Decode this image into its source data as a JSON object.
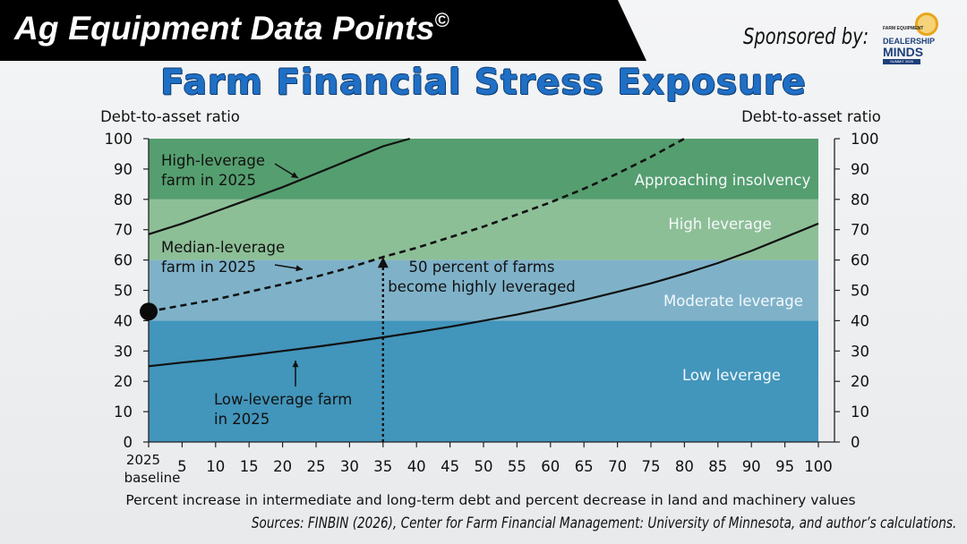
{
  "header": {
    "title": "Ag Equipment Data Points",
    "copyright_mark": "©"
  },
  "sponsor": {
    "label": "Sponsored by:",
    "logo": {
      "icon": "lightbulb-icon",
      "small_text": "FARM EQUIPMENT",
      "line1": "DEALERSHIP",
      "line2": "MINDS",
      "band": "SUMMIT 2026"
    }
  },
  "chart_title": "Farm Financial Stress Exposure",
  "sources": "Sources: FINBIN (2026), Center for Farm Financial Management: University of Minnesota, and author’s calculations.",
  "colors": {
    "title_blue": "#1f6fc5",
    "zone_low": "#4295bb",
    "zone_moderate": "#7fb2c9",
    "zone_high": "#8dbf97",
    "zone_insolvency": "#559e6f"
  },
  "chart_data": {
    "type": "line",
    "xlabel": "Percent increase in intermediate and long-term debt and percent decrease in land and machinery values",
    "ylabel_left": "Debt-to-asset ratio",
    "ylabel_right": "Debt-to-asset ratio",
    "xlim": [
      0,
      100
    ],
    "ylim": [
      0,
      100
    ],
    "x_ticks": [
      5,
      10,
      15,
      20,
      25,
      30,
      35,
      40,
      45,
      50,
      55,
      60,
      65,
      70,
      75,
      80,
      85,
      90,
      95,
      100
    ],
    "x_first_tick_label": [
      "2025",
      "baseline"
    ],
    "y_ticks": [
      0,
      10,
      20,
      30,
      40,
      50,
      60,
      70,
      80,
      90,
      100
    ],
    "zones": [
      {
        "name": "Low leverage",
        "from": 0,
        "to": 40
      },
      {
        "name": "Moderate leverage",
        "from": 40,
        "to": 60
      },
      {
        "name": "High leverage",
        "from": 60,
        "to": 80
      },
      {
        "name": "Approaching insolvency",
        "from": 80,
        "to": 100
      }
    ],
    "series": [
      {
        "name": "High-leverage farm in 2025",
        "style": "solid",
        "x": [
          0,
          5,
          10,
          15,
          20,
          25,
          30,
          35,
          39
        ],
        "y": [
          68.5,
          72,
          76,
          80,
          84,
          88.5,
          93,
          97.5,
          100
        ]
      },
      {
        "name": "Median-leverage farm in 2025",
        "style": "dashed",
        "x": [
          0,
          5,
          10,
          15,
          20,
          25,
          30,
          35,
          40,
          45,
          50,
          55,
          60,
          65,
          70,
          75,
          80
        ],
        "y": [
          43,
          45,
          47,
          49.5,
          52,
          54.5,
          57.5,
          61,
          64,
          67.5,
          71,
          75,
          79,
          83.5,
          88.5,
          94,
          100
        ]
      },
      {
        "name": "Low-leverage farm in 2025",
        "style": "solid",
        "x": [
          0,
          5,
          10,
          15,
          20,
          25,
          30,
          35,
          40,
          45,
          50,
          55,
          60,
          65,
          70,
          75,
          80,
          85,
          90,
          95,
          100
        ],
        "y": [
          25,
          26.2,
          27.3,
          28.6,
          30,
          31.4,
          32.9,
          34.5,
          36.2,
          38,
          40,
          42,
          44.3,
          46.8,
          49.5,
          52.3,
          55.5,
          59,
          63,
          67.5,
          72
        ]
      }
    ],
    "baseline_marker": {
      "x": 0,
      "y": 43
    },
    "vertical_marker": {
      "x": 35,
      "y_from": 0,
      "y_to": 61
    },
    "annotations": [
      {
        "lines": [
          "High-leverage",
          "farm in 2025"
        ]
      },
      {
        "lines": [
          "Median-leverage",
          "farm in 2025"
        ]
      },
      {
        "lines": [
          "Low-leverage farm",
          "in 2025"
        ]
      },
      {
        "lines": [
          "50 percent of farms",
          "become highly leveraged"
        ]
      }
    ]
  }
}
